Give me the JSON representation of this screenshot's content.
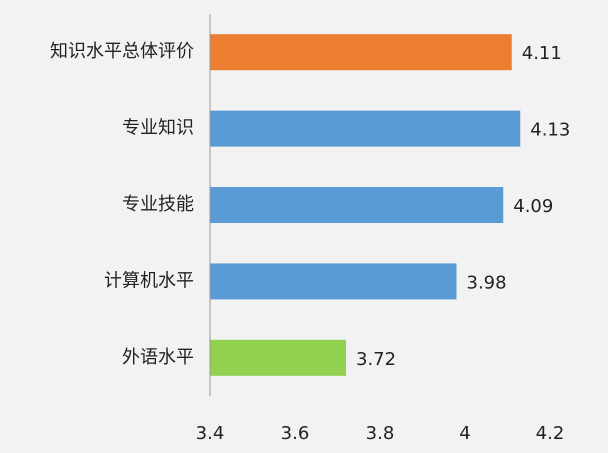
{
  "chart_data": {
    "type": "bar",
    "orientation": "horizontal",
    "categories": [
      "知识水平总体评价",
      "专业知识",
      "专业技能",
      "计算机水平",
      "外语水平"
    ],
    "values": [
      4.11,
      4.13,
      4.09,
      3.98,
      3.72
    ],
    "colors": [
      "#ed7d31",
      "#5b9bd5",
      "#5b9bd5",
      "#5b9bd5",
      "#92d050"
    ],
    "xlim": [
      3.4,
      4.2
    ],
    "xticks": [
      3.4,
      3.6,
      3.8,
      4,
      4.2
    ]
  }
}
